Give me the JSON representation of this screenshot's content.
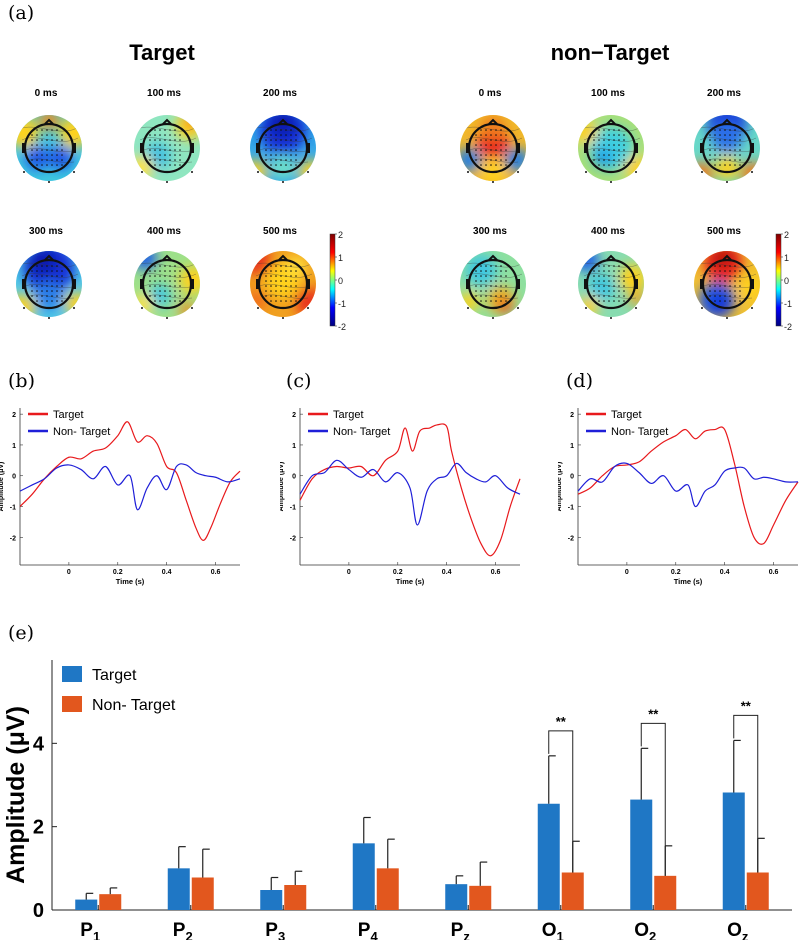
{
  "panel_labels": {
    "a": "(a)",
    "b": "(b)",
    "c": "(c)",
    "d": "(d)",
    "e": "(e)"
  },
  "topomaps": {
    "conditions": [
      {
        "title": "Target",
        "maps": [
          {
            "time": "0 ms",
            "pattern": "blue-posterior"
          },
          {
            "time": "100 ms",
            "pattern": "mild-cyan"
          },
          {
            "time": "200 ms",
            "pattern": "blue-frontal"
          },
          {
            "time": "300 ms",
            "pattern": "blue-frontal-strong"
          },
          {
            "time": "400 ms",
            "pattern": "mixed-yellow"
          },
          {
            "time": "500 ms",
            "pattern": "red-ring"
          }
        ]
      },
      {
        "title": "non−Target",
        "maps": [
          {
            "time": "0 ms",
            "pattern": "red-central"
          },
          {
            "time": "100 ms",
            "pattern": "cyan-central"
          },
          {
            "time": "200 ms",
            "pattern": "blue-top-red-bottom"
          },
          {
            "time": "300 ms",
            "pattern": "yellow-spot"
          },
          {
            "time": "400 ms",
            "pattern": "mixed-cyan"
          },
          {
            "time": "500 ms",
            "pattern": "red-frontal-blue-back"
          }
        ]
      }
    ],
    "colorbar": {
      "ticks": [
        "2",
        "1",
        "0",
        "-1",
        "-2"
      ],
      "colors": [
        "#7f0000",
        "#ff0000",
        "#ffff00",
        "#00ffff",
        "#0000ff",
        "#00007f"
      ]
    }
  },
  "chart_data": [
    {
      "panel": "b",
      "type": "line",
      "xlabel": "Time (s)",
      "ylabel": "Amplitude (μV)",
      "xlim": [
        -0.2,
        0.7
      ],
      "ylim": [
        -2.9,
        2.2
      ],
      "xticks": [
        "0",
        "0.2",
        "0.4",
        "0.6"
      ],
      "yticks": [
        "2",
        "1",
        "0",
        "-1",
        "-2"
      ],
      "series": [
        {
          "name": "Target",
          "color": "#e8191c",
          "x": [
            -0.2,
            -0.15,
            -0.1,
            -0.05,
            0,
            0.05,
            0.1,
            0.15,
            0.2,
            0.24,
            0.28,
            0.32,
            0.36,
            0.4,
            0.44,
            0.48,
            0.52,
            0.55,
            0.58,
            0.62,
            0.66,
            0.7
          ],
          "y": [
            -1.0,
            -0.6,
            -0.1,
            0.3,
            0.6,
            0.55,
            0.8,
            0.9,
            1.3,
            1.75,
            1.1,
            1.3,
            1.05,
            0.3,
            0.1,
            -0.8,
            -1.7,
            -2.1,
            -1.7,
            -0.9,
            -0.2,
            0.15
          ]
        },
        {
          "name": "Non- Target",
          "color": "#1f1fd8",
          "x": [
            -0.2,
            -0.15,
            -0.1,
            -0.05,
            0,
            0.05,
            0.1,
            0.15,
            0.2,
            0.25,
            0.28,
            0.32,
            0.36,
            0.4,
            0.44,
            0.48,
            0.52,
            0.56,
            0.6,
            0.65,
            0.7
          ],
          "y": [
            -0.5,
            -0.3,
            -0.1,
            0.25,
            0.35,
            0.2,
            -0.1,
            0.3,
            -0.3,
            0.0,
            -1.1,
            -0.4,
            0.0,
            -0.45,
            0.3,
            0.35,
            0.1,
            0.0,
            -0.05,
            -0.2,
            -0.1
          ]
        }
      ]
    },
    {
      "panel": "c",
      "type": "line",
      "xlabel": "Time (s)",
      "ylabel": "Amplitude (μV)",
      "xlim": [
        -0.2,
        0.7
      ],
      "ylim": [
        -2.9,
        2.2
      ],
      "xticks": [
        "0",
        "0.2",
        "0.4",
        "0.6"
      ],
      "yticks": [
        "2",
        "1",
        "0",
        "-1",
        "-2"
      ],
      "series": [
        {
          "name": "Target",
          "color": "#e8191c",
          "x": [
            -0.2,
            -0.15,
            -0.1,
            -0.05,
            0,
            0.05,
            0.1,
            0.15,
            0.2,
            0.23,
            0.26,
            0.29,
            0.33,
            0.36,
            0.4,
            0.42,
            0.46,
            0.5,
            0.54,
            0.58,
            0.62,
            0.66,
            0.7
          ],
          "y": [
            -0.8,
            -0.1,
            0.2,
            0.3,
            0.25,
            0.3,
            0.0,
            0.5,
            0.8,
            1.55,
            0.8,
            1.45,
            1.55,
            1.65,
            1.6,
            0.8,
            -0.4,
            -1.4,
            -2.2,
            -2.6,
            -2.1,
            -1.0,
            -0.1
          ]
        },
        {
          "name": "Non- Target",
          "color": "#1f1fd8",
          "x": [
            -0.2,
            -0.15,
            -0.1,
            -0.05,
            0,
            0.05,
            0.1,
            0.15,
            0.2,
            0.25,
            0.28,
            0.32,
            0.36,
            0.4,
            0.44,
            0.48,
            0.52,
            0.56,
            0.6,
            0.65,
            0.7
          ],
          "y": [
            -0.6,
            0.0,
            0.1,
            0.5,
            0.2,
            -0.05,
            0.2,
            -0.2,
            0.1,
            -0.4,
            -1.6,
            -0.5,
            -0.1,
            0.0,
            0.4,
            0.1,
            -0.1,
            -0.2,
            0.0,
            -0.4,
            -0.6
          ]
        }
      ]
    },
    {
      "panel": "d",
      "type": "line",
      "xlabel": "Time (s)",
      "ylabel": "Amplitude (μV)",
      "xlim": [
        -0.2,
        0.7
      ],
      "ylim": [
        -2.9,
        2.2
      ],
      "xticks": [
        "0",
        "0.2",
        "0.4",
        "0.6"
      ],
      "yticks": [
        "2",
        "1",
        "0",
        "-1",
        "-2"
      ],
      "series": [
        {
          "name": "Target",
          "color": "#e8191c",
          "x": [
            -0.2,
            -0.15,
            -0.1,
            -0.05,
            0,
            0.05,
            0.1,
            0.15,
            0.2,
            0.24,
            0.28,
            0.32,
            0.36,
            0.4,
            0.44,
            0.48,
            0.52,
            0.56,
            0.6,
            0.65,
            0.7
          ],
          "y": [
            -0.6,
            -0.4,
            0.0,
            0.3,
            0.35,
            0.45,
            0.8,
            1.1,
            1.3,
            1.5,
            1.2,
            1.45,
            1.5,
            1.5,
            0.4,
            -1.0,
            -2.0,
            -2.2,
            -1.6,
            -0.8,
            -0.2
          ]
        },
        {
          "name": "Non- Target",
          "color": "#1f1fd8",
          "x": [
            -0.2,
            -0.15,
            -0.1,
            -0.05,
            0,
            0.05,
            0.1,
            0.15,
            0.2,
            0.25,
            0.28,
            0.32,
            0.36,
            0.4,
            0.44,
            0.48,
            0.52,
            0.56,
            0.6,
            0.65,
            0.7
          ],
          "y": [
            -0.5,
            -0.1,
            -0.2,
            0.3,
            0.4,
            0.1,
            -0.25,
            0.0,
            -0.5,
            -0.3,
            -1.0,
            -0.5,
            -0.3,
            0.15,
            0.25,
            0.25,
            -0.1,
            -0.05,
            -0.1,
            -0.2,
            -0.2
          ]
        }
      ]
    },
    {
      "panel": "e",
      "type": "bar",
      "ylabel": "Amplitude (μV)",
      "ylim": [
        0,
        6
      ],
      "yticks": [
        "0",
        "2",
        "4"
      ],
      "categories": [
        {
          "base": "P",
          "sub": "1"
        },
        {
          "base": "P",
          "sub": "2"
        },
        {
          "base": "P",
          "sub": "3"
        },
        {
          "base": "P",
          "sub": "4"
        },
        {
          "base": "P",
          "sub": "z"
        },
        {
          "base": "O",
          "sub": "1"
        },
        {
          "base": "O",
          "sub": "2"
        },
        {
          "base": "O",
          "sub": "z"
        }
      ],
      "series": [
        {
          "name": "Target",
          "color": "#1f77c5",
          "values": [
            0.25,
            1.0,
            0.48,
            1.6,
            0.62,
            2.55,
            2.65,
            2.82
          ],
          "errors": [
            0.15,
            0.52,
            0.3,
            0.62,
            0.2,
            1.15,
            1.23,
            1.25
          ]
        },
        {
          "name": "Non- Target",
          "color": "#e2571e",
          "values": [
            0.38,
            0.78,
            0.6,
            1.0,
            0.58,
            0.9,
            0.82,
            0.9
          ],
          "errors": [
            0.15,
            0.68,
            0.33,
            0.7,
            0.57,
            0.75,
            0.72,
            0.82
          ]
        }
      ],
      "significance": [
        {
          "category_index": 5,
          "label": "**"
        },
        {
          "category_index": 6,
          "label": "**"
        },
        {
          "category_index": 7,
          "label": "**"
        }
      ]
    }
  ]
}
